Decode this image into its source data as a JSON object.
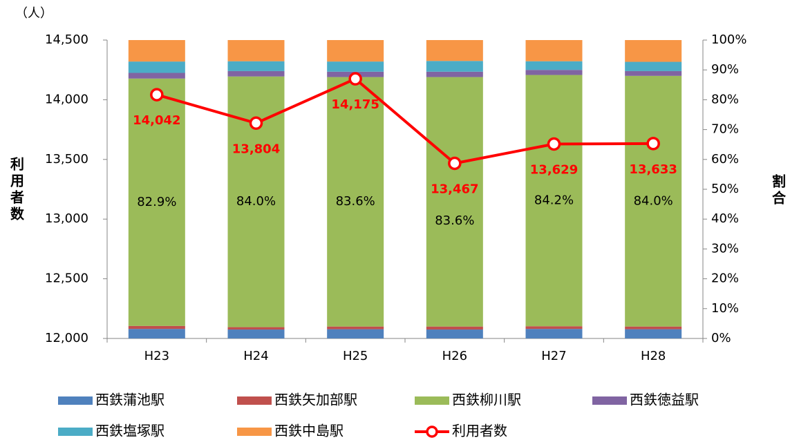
{
  "chart_data": {
    "type": "bar",
    "unit_label": "（人）",
    "y_label": "利用者数",
    "y2_label": "割合",
    "categories": [
      "H23",
      "H24",
      "H25",
      "H26",
      "H27",
      "H28"
    ],
    "ylim": [
      12000,
      14500
    ],
    "yticks": [
      {
        "value": 12000,
        "label": "12,000"
      },
      {
        "value": 12500,
        "label": "12,500"
      },
      {
        "value": 13000,
        "label": "13,000"
      },
      {
        "value": 13500,
        "label": "13,500"
      },
      {
        "value": 14000,
        "label": "14,000"
      },
      {
        "value": 14500,
        "label": "14,500"
      }
    ],
    "y2lim": [
      0,
      100
    ],
    "y2ticks": [
      {
        "value": 0,
        "label": "0%"
      },
      {
        "value": 10,
        "label": "10%"
      },
      {
        "value": 20,
        "label": "20%"
      },
      {
        "value": 30,
        "label": "30%"
      },
      {
        "value": 40,
        "label": "40%"
      },
      {
        "value": 50,
        "label": "50%"
      },
      {
        "value": 60,
        "label": "60%"
      },
      {
        "value": 70,
        "label": "70%"
      },
      {
        "value": 80,
        "label": "80%"
      },
      {
        "value": 90,
        "label": "90%"
      },
      {
        "value": {
          "value": 100,
          "label": "100%"
        },
        "label": "100%"
      }
    ],
    "stacked": true,
    "series": [
      {
        "name": "西鉄蒲池駅",
        "color": "#4f81bd",
        "axis": "y2",
        "values": [
          3.2,
          3.0,
          3.1,
          3.0,
          3.2,
          3.1
        ]
      },
      {
        "name": "西鉄矢加部駅",
        "color": "#c0504d",
        "axis": "y2",
        "values": [
          1.0,
          0.8,
          0.9,
          1.0,
          0.9,
          0.9
        ]
      },
      {
        "name": "西鉄柳川駅",
        "color": "#9bbb59",
        "axis": "y2",
        "values": [
          82.9,
          84.0,
          83.6,
          83.6,
          84.2,
          84.0
        ],
        "value_labels": [
          "82.9%",
          "84.0%",
          "83.6%",
          "83.6%",
          "84.2%",
          "84.0%"
        ]
      },
      {
        "name": "西鉄徳益駅",
        "color": "#8064a2",
        "axis": "y2",
        "values": [
          1.9,
          1.8,
          1.8,
          1.8,
          1.7,
          1.6
        ]
      },
      {
        "name": "西鉄塩塚駅",
        "color": "#4bacc6",
        "axis": "y2",
        "values": [
          3.8,
          3.3,
          3.4,
          3.6,
          2.9,
          3.1
        ]
      },
      {
        "name": "西鉄中島駅",
        "color": "#f79646",
        "axis": "y2",
        "values": [
          7.2,
          7.1,
          7.2,
          7.0,
          7.1,
          7.3
        ]
      },
      {
        "name": "利用者数",
        "color": "#ff0000",
        "type": "line",
        "axis": "y",
        "values": [
          14042,
          13804,
          14175,
          13467,
          13629,
          13633
        ],
        "value_labels": [
          "14,042",
          "13,804",
          "14,175",
          "13,467",
          "13,629",
          "13,633"
        ]
      }
    ]
  }
}
